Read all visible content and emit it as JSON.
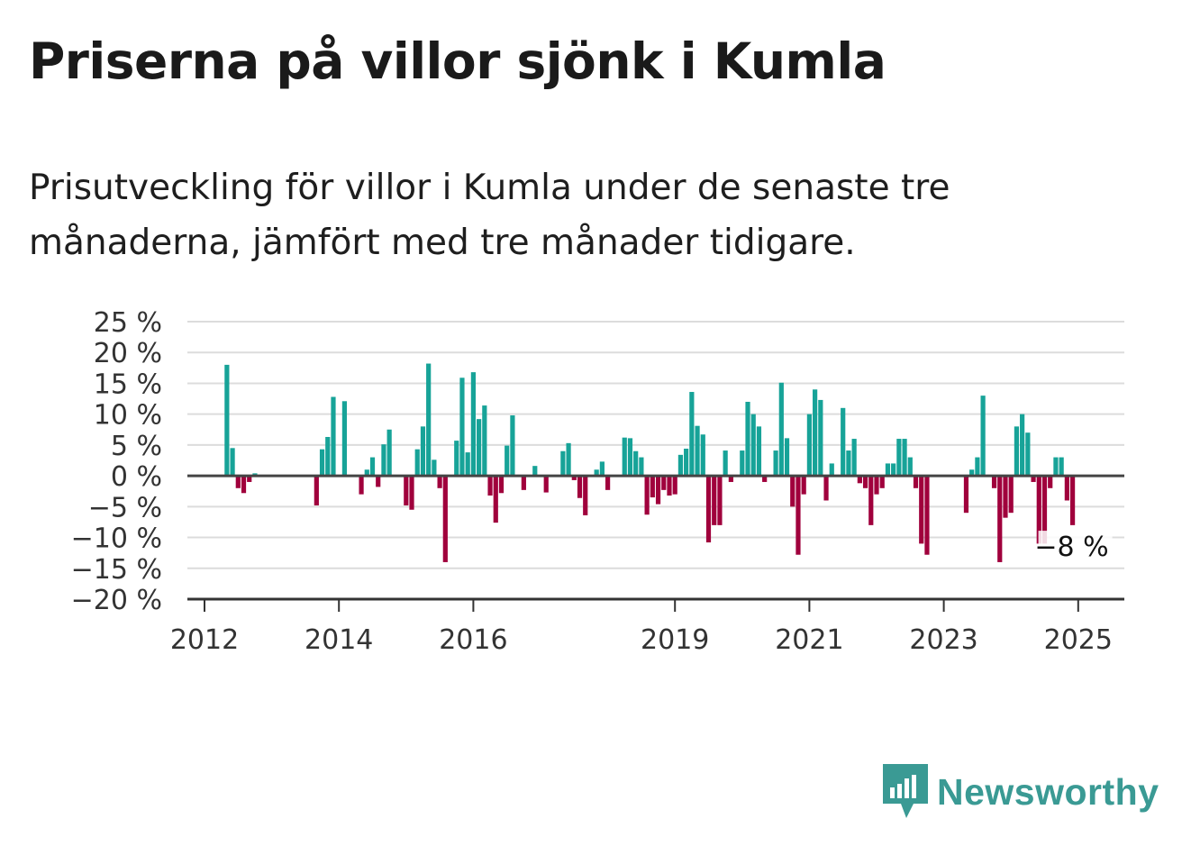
{
  "title": "Priserna på villor sjönk i Kumla",
  "subtitle": "Prisutveckling för villor i Kumla under de senaste tre månaderna, jämfört med tre månader tidigare.",
  "brand": {
    "name": "Newsworthy",
    "icon": "newsworthy-logo-icon",
    "color": "#3a9a94"
  },
  "chart_data": {
    "type": "bar",
    "x_start": "2012-01",
    "x_end": "2025-12",
    "ylim": [
      -20,
      25
    ],
    "y_ticks": [
      25,
      20,
      15,
      10,
      5,
      0,
      -5,
      -10,
      -15,
      -20
    ],
    "y_tick_labels": [
      "25 %",
      "20 %",
      "15 %",
      "10 %",
      "5 %",
      "0 %",
      "−5 %",
      "−10 %",
      "−15 %",
      "−20 %"
    ],
    "x_ticks": [
      "2012",
      "2014",
      "2016",
      "2019",
      "2021",
      "2023",
      "2025"
    ],
    "grid": true,
    "colors": {
      "positive": "#17a398",
      "negative": "#a0003c",
      "zero_line": "#444444"
    },
    "annotation": {
      "text": "−8 %",
      "x": "2024-12",
      "y": -8
    },
    "series": [
      {
        "values": [
          {
            "x": "2012-05",
            "y": 18
          },
          {
            "x": "2012-06",
            "y": 4.5
          },
          {
            "x": "2012-07",
            "y": -2
          },
          {
            "x": "2012-08",
            "y": -2.8
          },
          {
            "x": "2012-09",
            "y": -1
          },
          {
            "x": "2012-10",
            "y": 0.4
          },
          {
            "x": "2013-09",
            "y": -4.8
          },
          {
            "x": "2013-10",
            "y": 4.3
          },
          {
            "x": "2013-11",
            "y": 6.3
          },
          {
            "x": "2013-12",
            "y": 12.8
          },
          {
            "x": "2014-02",
            "y": 12.1
          },
          {
            "x": "2014-05",
            "y": -3
          },
          {
            "x": "2014-06",
            "y": 1
          },
          {
            "x": "2014-07",
            "y": 3
          },
          {
            "x": "2014-08",
            "y": -1.8
          },
          {
            "x": "2014-09",
            "y": 5.1
          },
          {
            "x": "2014-10",
            "y": 7.5
          },
          {
            "x": "2015-01",
            "y": -4.8
          },
          {
            "x": "2015-02",
            "y": -5.5
          },
          {
            "x": "2015-03",
            "y": 4.3
          },
          {
            "x": "2015-04",
            "y": 8
          },
          {
            "x": "2015-05",
            "y": 18.2
          },
          {
            "x": "2015-06",
            "y": 2.6
          },
          {
            "x": "2015-07",
            "y": -2
          },
          {
            "x": "2015-08",
            "y": -14
          },
          {
            "x": "2015-10",
            "y": 5.7
          },
          {
            "x": "2015-11",
            "y": 15.9
          },
          {
            "x": "2015-12",
            "y": 3.8
          },
          {
            "x": "2016-01",
            "y": 16.8
          },
          {
            "x": "2016-02",
            "y": 9.2
          },
          {
            "x": "2016-03",
            "y": 11.4
          },
          {
            "x": "2016-04",
            "y": -3.2
          },
          {
            "x": "2016-05",
            "y": -7.6
          },
          {
            "x": "2016-06",
            "y": -2.8
          },
          {
            "x": "2016-07",
            "y": 4.9
          },
          {
            "x": "2016-08",
            "y": 9.8
          },
          {
            "x": "2016-10",
            "y": -2.3
          },
          {
            "x": "2016-12",
            "y": 1.6
          },
          {
            "x": "2017-02",
            "y": -2.7
          },
          {
            "x": "2017-05",
            "y": 4
          },
          {
            "x": "2017-06",
            "y": 5.3
          },
          {
            "x": "2017-07",
            "y": -0.7
          },
          {
            "x": "2017-08",
            "y": -3.6
          },
          {
            "x": "2017-09",
            "y": -6.4
          },
          {
            "x": "2017-11",
            "y": 1
          },
          {
            "x": "2017-12",
            "y": 2.3
          },
          {
            "x": "2018-01",
            "y": -2.3
          },
          {
            "x": "2018-04",
            "y": 6.2
          },
          {
            "x": "2018-05",
            "y": 6.1
          },
          {
            "x": "2018-06",
            "y": 4
          },
          {
            "x": "2018-07",
            "y": 3
          },
          {
            "x": "2018-08",
            "y": -6.3
          },
          {
            "x": "2018-09",
            "y": -3.5
          },
          {
            "x": "2018-10",
            "y": -4.6
          },
          {
            "x": "2018-11",
            "y": -2.3
          },
          {
            "x": "2018-12",
            "y": -3.2
          },
          {
            "x": "2019-01",
            "y": -3
          },
          {
            "x": "2019-02",
            "y": 3.4
          },
          {
            "x": "2019-03",
            "y": 4.4
          },
          {
            "x": "2019-04",
            "y": 13.6
          },
          {
            "x": "2019-05",
            "y": 8.1
          },
          {
            "x": "2019-06",
            "y": 6.7
          },
          {
            "x": "2019-07",
            "y": -10.8
          },
          {
            "x": "2019-08",
            "y": -8
          },
          {
            "x": "2019-09",
            "y": -8
          },
          {
            "x": "2019-10",
            "y": 4.1
          },
          {
            "x": "2019-11",
            "y": -1
          },
          {
            "x": "2020-01",
            "y": 4.1
          },
          {
            "x": "2020-02",
            "y": 12
          },
          {
            "x": "2020-03",
            "y": 10
          },
          {
            "x": "2020-04",
            "y": 8
          },
          {
            "x": "2020-05",
            "y": -1
          },
          {
            "x": "2020-07",
            "y": 4.1
          },
          {
            "x": "2020-08",
            "y": 15.1
          },
          {
            "x": "2020-09",
            "y": 6.1
          },
          {
            "x": "2020-10",
            "y": -5
          },
          {
            "x": "2020-11",
            "y": -12.8
          },
          {
            "x": "2020-12",
            "y": -3
          },
          {
            "x": "2021-01",
            "y": 10
          },
          {
            "x": "2021-02",
            "y": 14
          },
          {
            "x": "2021-03",
            "y": 12.3
          },
          {
            "x": "2021-04",
            "y": -4
          },
          {
            "x": "2021-05",
            "y": 2
          },
          {
            "x": "2021-07",
            "y": 11
          },
          {
            "x": "2021-08",
            "y": 4.1
          },
          {
            "x": "2021-09",
            "y": 6
          },
          {
            "x": "2021-10",
            "y": -1.2
          },
          {
            "x": "2021-11",
            "y": -2
          },
          {
            "x": "2021-12",
            "y": -8
          },
          {
            "x": "2022-01",
            "y": -3
          },
          {
            "x": "2022-02",
            "y": -2
          },
          {
            "x": "2022-03",
            "y": 2
          },
          {
            "x": "2022-04",
            "y": 2
          },
          {
            "x": "2022-05",
            "y": 6
          },
          {
            "x": "2022-06",
            "y": 6
          },
          {
            "x": "2022-07",
            "y": 3
          },
          {
            "x": "2022-08",
            "y": -2
          },
          {
            "x": "2022-09",
            "y": -11
          },
          {
            "x": "2022-10",
            "y": -12.8
          },
          {
            "x": "2023-05",
            "y": -6
          },
          {
            "x": "2023-06",
            "y": 1
          },
          {
            "x": "2023-07",
            "y": 3
          },
          {
            "x": "2023-08",
            "y": 13
          },
          {
            "x": "2023-10",
            "y": -2
          },
          {
            "x": "2023-11",
            "y": -14
          },
          {
            "x": "2023-12",
            "y": -6.8
          },
          {
            "x": "2024-01",
            "y": -6
          },
          {
            "x": "2024-02",
            "y": 8
          },
          {
            "x": "2024-03",
            "y": 10
          },
          {
            "x": "2024-04",
            "y": 7
          },
          {
            "x": "2024-05",
            "y": -1
          },
          {
            "x": "2024-06",
            "y": -11
          },
          {
            "x": "2024-07",
            "y": -11
          },
          {
            "x": "2024-08",
            "y": -2
          },
          {
            "x": "2024-09",
            "y": 3
          },
          {
            "x": "2024-10",
            "y": 3
          },
          {
            "x": "2024-11",
            "y": -4
          },
          {
            "x": "2024-12",
            "y": -8
          }
        ]
      }
    ]
  }
}
